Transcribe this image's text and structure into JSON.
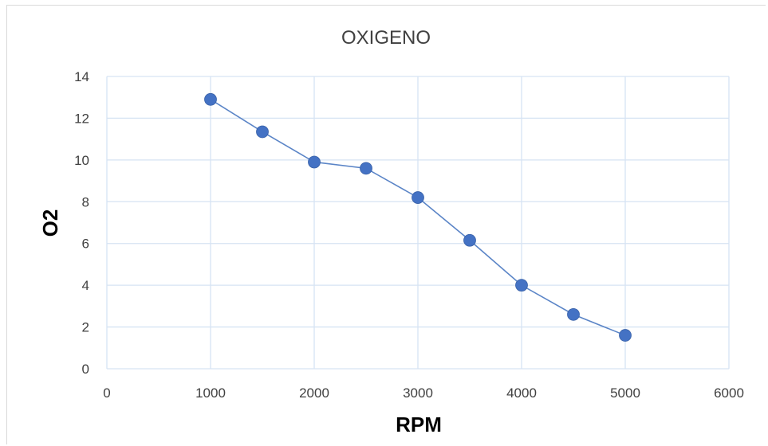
{
  "chart_data": {
    "type": "scatter",
    "title": "OXIGENO",
    "xlabel": "RPM",
    "ylabel": "O2",
    "xlim": [
      0,
      6000
    ],
    "ylim": [
      0,
      14
    ],
    "x_ticks": [
      0,
      1000,
      2000,
      3000,
      4000,
      5000,
      6000
    ],
    "y_ticks": [
      0,
      2,
      4,
      6,
      8,
      10,
      12,
      14
    ],
    "grid": true,
    "legend": "none",
    "series": [
      {
        "x": [
          1000,
          1500,
          2000,
          2500,
          3000,
          3500,
          4000,
          4500,
          5000
        ],
        "y": [
          12.9,
          11.35,
          9.9,
          9.6,
          8.2,
          6.15,
          4.0,
          2.6,
          1.6
        ]
      }
    ],
    "colors": {
      "series": "#4472c4",
      "line": "#5b85c7",
      "grid": "#d6e3f3"
    }
  }
}
